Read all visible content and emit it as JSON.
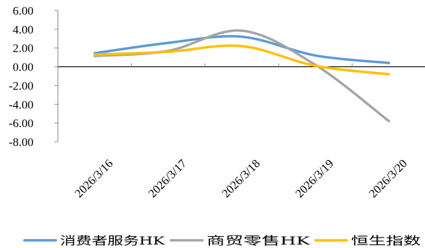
{
  "chart_data": {
    "type": "line",
    "categories": [
      "2026/3/16",
      "2026/3/17",
      "2026/3/18",
      "2026/3/19",
      "2026/3/20"
    ],
    "yticks": [
      "6.00",
      "4.00",
      "2.00",
      "0.00",
      "-2.00",
      "-4.00",
      "-6.00",
      "-8.00"
    ],
    "ylim": [
      -8,
      6
    ],
    "grid": false,
    "legend_position": "bottom",
    "smooth": true,
    "series": [
      {
        "name": "消费者服务HK",
        "color": "#5B9BD5",
        "values": [
          1.45,
          2.55,
          3.2,
          1.2,
          0.4
        ]
      },
      {
        "name": "商贸零售HK",
        "color": "#A5A5A5",
        "values": [
          1.15,
          1.7,
          3.85,
          0.2,
          -5.8
        ]
      },
      {
        "name": "恒生指数",
        "color": "#FFC000",
        "values": [
          1.3,
          1.6,
          2.2,
          0.1,
          -0.8
        ]
      }
    ]
  }
}
